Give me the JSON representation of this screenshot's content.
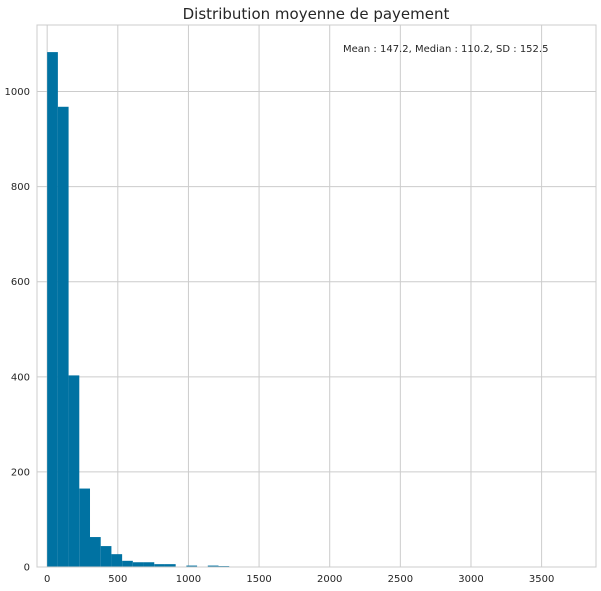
{
  "chart_data": {
    "type": "bar",
    "title": "Distribution moyenne de payement",
    "xlabel": "",
    "ylabel": "",
    "xlim": [
      -72,
      3885
    ],
    "ylim": [
      0,
      1140
    ],
    "xticks": [
      0,
      500,
      1000,
      1500,
      2000,
      2500,
      3000,
      3500
    ],
    "yticks": [
      0,
      200,
      400,
      600,
      800,
      1000
    ],
    "grid": true,
    "bin_width": 75.8,
    "bins": [
      {
        "start": 0,
        "value": 1083
      },
      {
        "start": 75.8,
        "value": 968
      },
      {
        "start": 151.6,
        "value": 403
      },
      {
        "start": 227.4,
        "value": 165
      },
      {
        "start": 303.2,
        "value": 63
      },
      {
        "start": 379.0,
        "value": 44
      },
      {
        "start": 454.8,
        "value": 27
      },
      {
        "start": 530.6,
        "value": 13
      },
      {
        "start": 606.4,
        "value": 10
      },
      {
        "start": 682.2,
        "value": 10
      },
      {
        "start": 758.0,
        "value": 6
      },
      {
        "start": 833.8,
        "value": 6
      },
      {
        "start": 985.4,
        "value": 3
      },
      {
        "start": 1137.0,
        "value": 3
      },
      {
        "start": 1212.8,
        "value": 2
      },
      {
        "start": 1364.4,
        "value": 1
      },
      {
        "start": 1516.0,
        "value": 1
      },
      {
        "start": 1743.4,
        "value": 1
      },
      {
        "start": 1970.8,
        "value": 1
      },
      {
        "start": 3714.2,
        "value": 1
      }
    ],
    "bar_color": "#0072a2",
    "annotation": "Mean : 147.2, Median :  110.2, SD :  152.5"
  }
}
